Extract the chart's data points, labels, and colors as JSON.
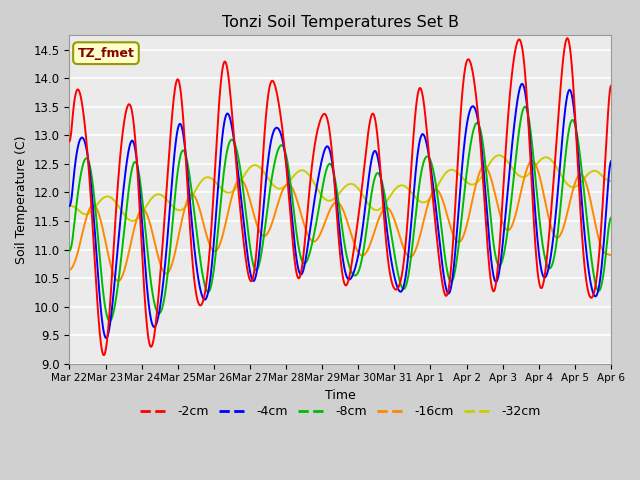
{
  "title": "Tonzi Soil Temperatures Set B",
  "xlabel": "Time",
  "ylabel": "Soil Temperature (C)",
  "ylim": [
    9.0,
    14.75
  ],
  "yticks": [
    9.0,
    9.5,
    10.0,
    10.5,
    11.0,
    11.5,
    12.0,
    12.5,
    13.0,
    13.5,
    14.0,
    14.5
  ],
  "xtick_labels": [
    "Mar 22",
    "Mar 23",
    "Mar 24",
    "Mar 25",
    "Mar 26",
    "Mar 27",
    "Mar 28",
    "Mar 29",
    "Mar 30",
    "Mar 31",
    "Apr 1",
    "Apr 2",
    "Apr 3",
    "Apr 4",
    "Apr 5",
    "Apr 6"
  ],
  "annotation": "TZ_fmet",
  "colors": {
    "-2cm": "#ff0000",
    "-4cm": "#0000ff",
    "-8cm": "#00bb00",
    "-16cm": "#ff8800",
    "-32cm": "#cccc00"
  },
  "legend_labels": [
    "-2cm",
    "-4cm",
    "-8cm",
    "-16cm",
    "-32cm"
  ],
  "fig_bg_color": "#d0d0d0",
  "plot_bg_color": "#ebebeb"
}
